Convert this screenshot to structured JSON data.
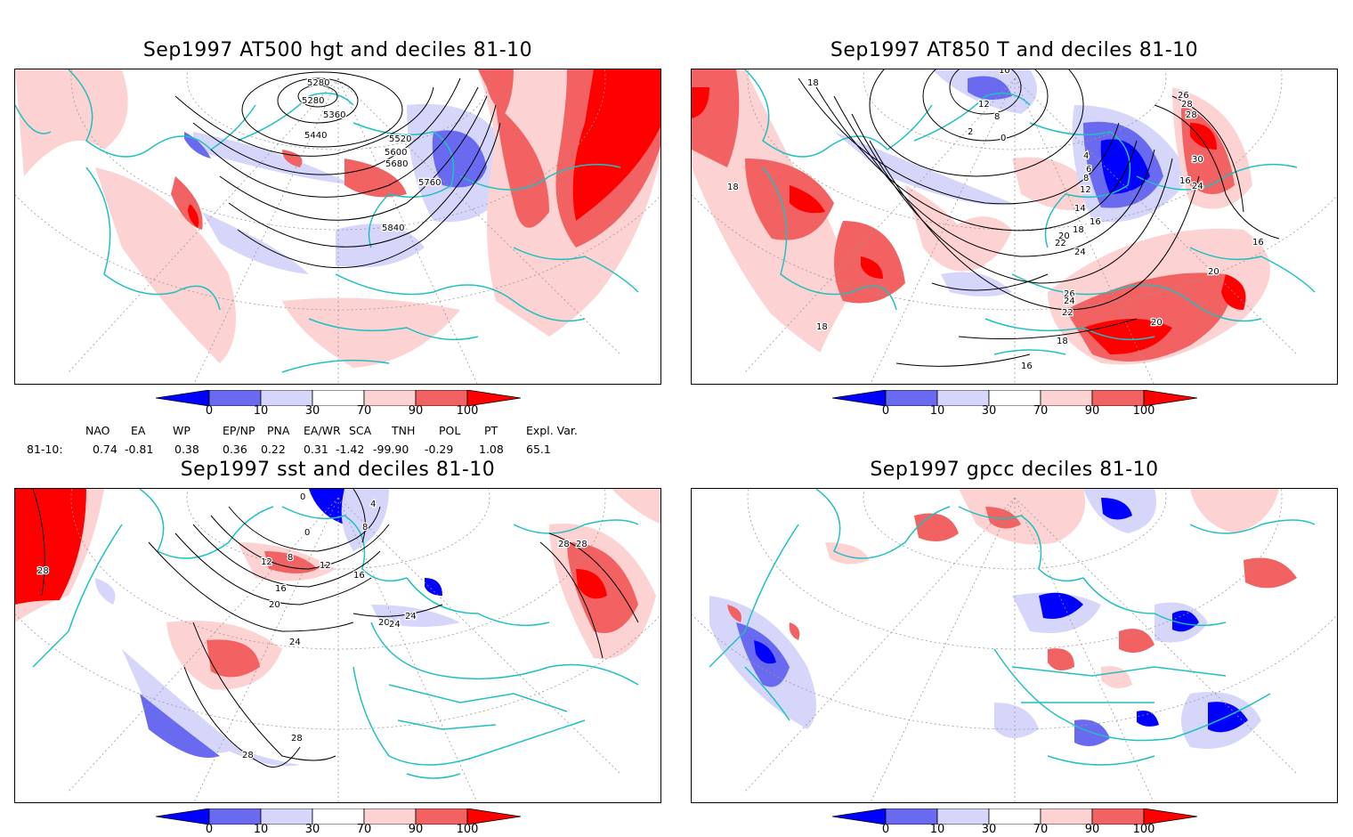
{
  "panels": {
    "p1": {
      "title": "Sep1997 AT500 hgt and deciles 81-10",
      "contour_labels": [
        "5280",
        "5280",
        "5360",
        "5440",
        "5520",
        "5600",
        "5680",
        "5760",
        "5840"
      ]
    },
    "p2": {
      "title": "Sep1997 AT850 T and deciles 81-10",
      "contour_labels": [
        "18",
        "18",
        "18",
        "16",
        "16",
        "10",
        "12",
        "8",
        "2",
        "0",
        "4",
        "6",
        "8",
        "12",
        "14",
        "16",
        "18",
        "20",
        "22",
        "24",
        "26",
        "24",
        "22",
        "20",
        "20",
        "18",
        "26",
        "28",
        "28",
        "30",
        "24",
        "16"
      ]
    },
    "p3": {
      "title": "Sep1997 sst and deciles 81-10",
      "contour_labels": [
        "28",
        "28",
        "28",
        "28",
        "24",
        "20",
        "16",
        "12",
        "8",
        "12",
        "16",
        "20",
        "24",
        "24",
        "0",
        "4",
        "0",
        "8",
        "28"
      ]
    },
    "p4": {
      "title": "Sep1997 gpcc deciles 81-10"
    }
  },
  "colorbar": {
    "tick_labels": [
      "0",
      "10",
      "30",
      "70",
      "90",
      "100"
    ],
    "colors": {
      "dark_blue": "#0000ff",
      "mid_blue": "#6a6af0",
      "light_blue": "#d6d6fb",
      "white": "#ffffff",
      "light_red": "#fcd2d2",
      "mid_red": "#f26262",
      "dark_red": "#ff0000"
    }
  },
  "indices": {
    "header": [
      "NAO",
      "EA",
      "WP",
      "EP/NP",
      "PNA",
      "EA/WR",
      "SCA",
      "TNH",
      "POL",
      "PT",
      "Expl. Var."
    ],
    "row_label": "81-10:",
    "values": [
      "0.74",
      "-0.81",
      "0.38",
      "0.36",
      "0.22",
      "0.31",
      "-1.42",
      "-99.90",
      "-0.29",
      "1.08",
      "65.1"
    ]
  },
  "map_colors": {
    "coast": "#20c0c0",
    "contour": "#000000",
    "grid": "#9a9a9a"
  }
}
